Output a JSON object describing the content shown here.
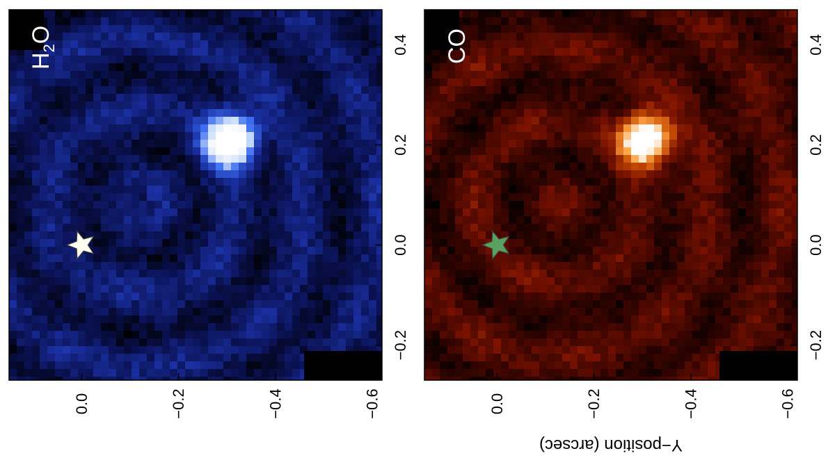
{
  "chart_data": [
    {
      "type": "heatmap",
      "panel_label": "H2O",
      "panel_label_main": "H",
      "panel_label_sub": "2",
      "panel_label_tail": "O",
      "x_ticks": [
        "0.4",
        "0.2",
        "0.0",
        "−0.2"
      ],
      "y_ticks": [
        "0.0",
        "−0.2",
        "−0.4",
        "−0.6"
      ],
      "colormap": [
        "#000000",
        "#0a1150",
        "#1a2fa0",
        "#3c6df0",
        "#c8dcff",
        "#ffffff"
      ],
      "star_color": "#fffff0",
      "peak": {
        "x": 0.21,
        "y": -0.31
      },
      "star": {
        "x": 0.0,
        "y": 0.0
      },
      "xlim": [
        0.47,
        -0.27
      ],
      "ylim": [
        0.15,
        -0.62
      ]
    },
    {
      "type": "heatmap",
      "panel_label": "CO",
      "x_ticks": [
        "0.4",
        "0.2",
        "0.0",
        "−0.2"
      ],
      "y_ticks": [
        "0.0",
        "−0.2",
        "−0.4",
        "−0.6"
      ],
      "ylabel": "Y−position (arcsec)",
      "colormap": [
        "#000000",
        "#3a0500",
        "#7a1200",
        "#c44a00",
        "#ffa64a",
        "#ffffff"
      ],
      "star_color": "#5aa060",
      "peak": {
        "x": 0.21,
        "y": -0.31
      },
      "star": {
        "x": 0.0,
        "y": 0.0
      },
      "xlim": [
        0.47,
        -0.27
      ],
      "ylim": [
        0.15,
        -0.62
      ]
    }
  ]
}
